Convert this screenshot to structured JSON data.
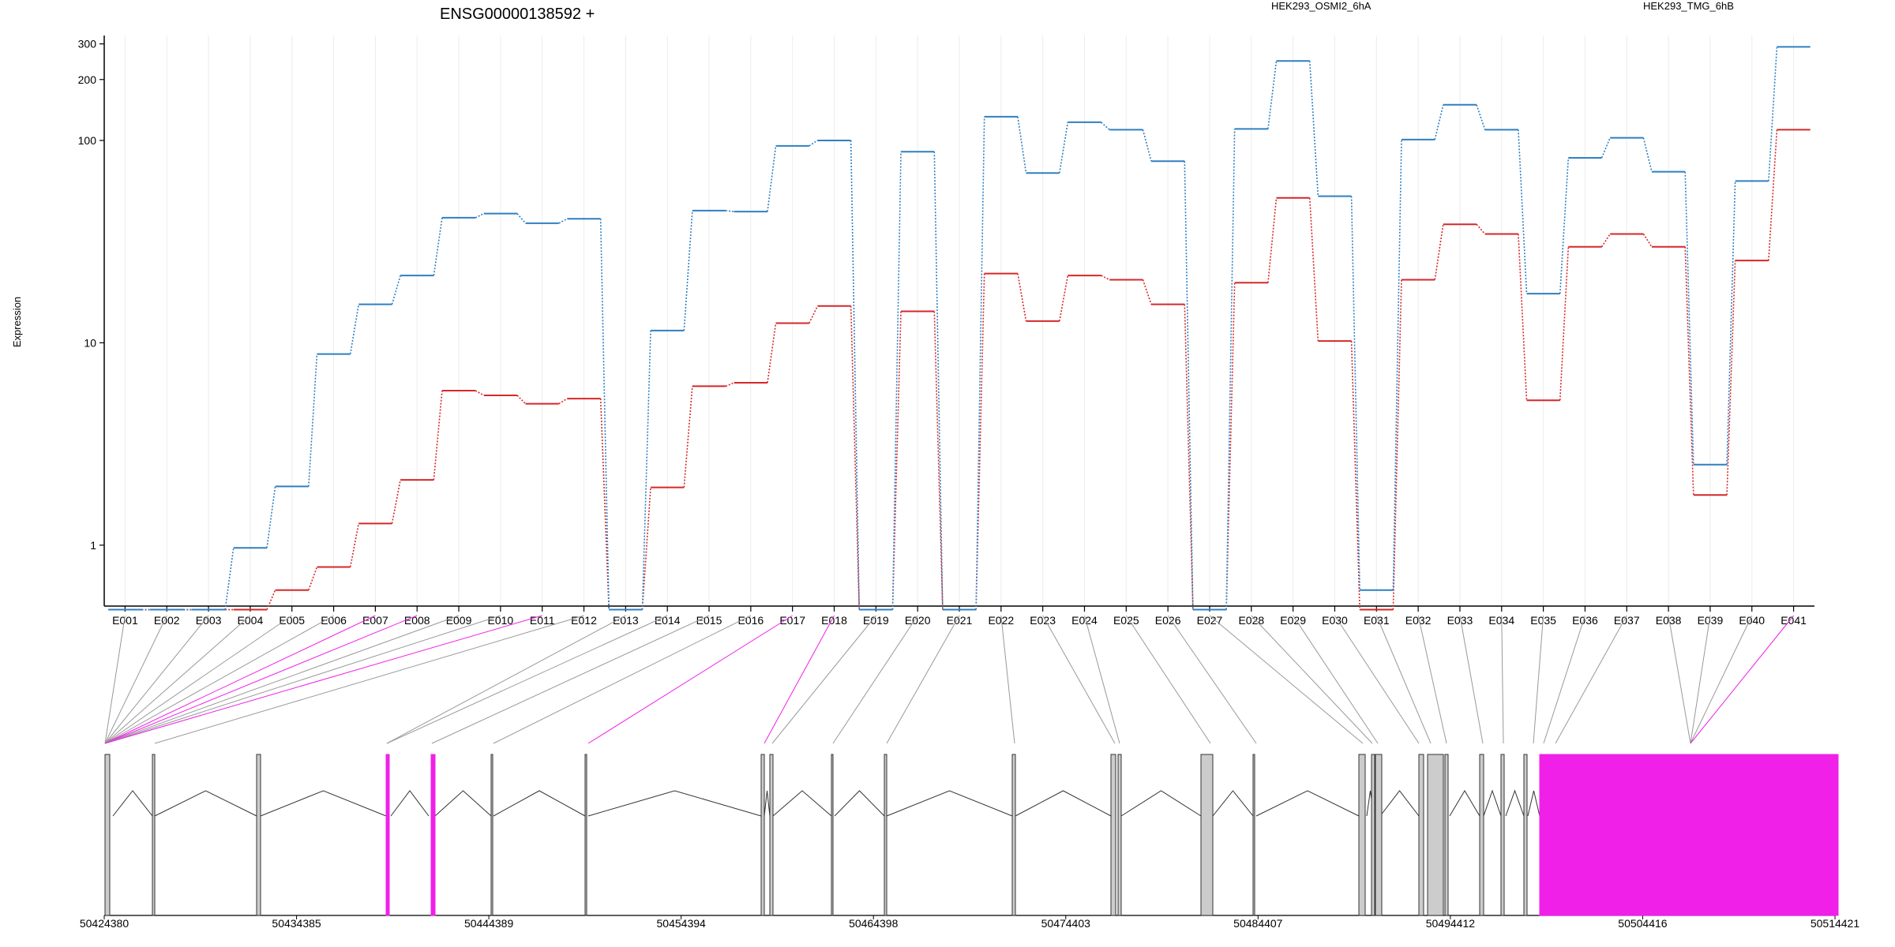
{
  "chart_data": {
    "type": "line",
    "title": "ENSG00000138592 +",
    "ylabel": "Expression",
    "xlabel": "",
    "y_scale": "log",
    "ylim": [
      0.5,
      330
    ],
    "y_ticks": [
      {
        "value": 1,
        "label": "1"
      },
      {
        "value": 10,
        "label": "10"
      },
      {
        "value": 100,
        "label": "100"
      },
      {
        "value": 200,
        "label": "200"
      },
      {
        "value": 300,
        "label": "300"
      }
    ],
    "categories": [
      "E001",
      "E002",
      "E003",
      "E004",
      "E005",
      "E006",
      "E007",
      "E008",
      "E009",
      "E010",
      "E011",
      "E012",
      "E013",
      "E014",
      "E015",
      "E016",
      "E017",
      "E018",
      "E019",
      "E020",
      "E021",
      "E022",
      "E023",
      "E024",
      "E025",
      "E026",
      "E027",
      "E028",
      "E029",
      "E030",
      "E031",
      "E032",
      "E033",
      "E034",
      "E035",
      "E036",
      "E037",
      "E038",
      "E039",
      "E040",
      "E041"
    ],
    "grid": "vertical",
    "legend_position": "top",
    "series": [
      {
        "name": "HEK293_OSMI2_6hA",
        "color": "#d62728",
        "values": [
          0.48,
          0.48,
          0.48,
          0.48,
          0.6,
          0.78,
          1.28,
          2.1,
          5.8,
          5.5,
          5.0,
          5.3,
          0.48,
          1.93,
          6.1,
          6.35,
          12.5,
          15.2,
          0.48,
          14.3,
          0.48,
          22,
          12.8,
          21.5,
          20.5,
          15.5,
          0.48,
          19.8,
          52,
          10.2,
          0.48,
          20.5,
          38.5,
          34.5,
          5.2,
          29.8,
          34.5,
          29.8,
          1.77,
          25.5,
          113
        ]
      },
      {
        "name": "HEK293_TMG_6hB",
        "color": "#2f7fc1",
        "values": [
          0.48,
          0.48,
          0.48,
          0.97,
          1.95,
          8.8,
          15.5,
          21.5,
          41.5,
          43.5,
          39,
          41,
          0.48,
          11.5,
          45,
          44.5,
          94,
          100,
          0.48,
          88,
          0.48,
          131,
          69,
          123,
          113,
          79,
          0.48,
          114,
          247,
          53,
          0.6,
          101,
          150,
          113,
          17.5,
          82,
          103,
          70,
          2.5,
          63,
          290
        ]
      }
    ],
    "gene_model": {
      "genomic_ticks": [
        "50424380",
        "50434385",
        "50444389",
        "50454394",
        "50464398",
        "50474403",
        "50484407",
        "50494412",
        "50504416",
        "50514421"
      ],
      "highlight_color": "#f020e8",
      "exon_fill": "#cccccc",
      "exon_highlighted": [
        false,
        false,
        false,
        false,
        false,
        false,
        true,
        true,
        false,
        false,
        true,
        false,
        false,
        false,
        false,
        false,
        true,
        true,
        false,
        false,
        false,
        false,
        false,
        false,
        false,
        false,
        false,
        false,
        false,
        false,
        false,
        false,
        false,
        false,
        false,
        false,
        false,
        false,
        false,
        false,
        true
      ]
    }
  }
}
